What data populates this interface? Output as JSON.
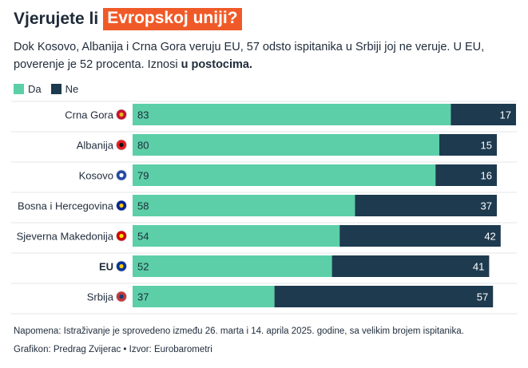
{
  "header": {
    "title_prefix": "Vjerujete li",
    "title_highlight": "Evropskoj uniji?",
    "subtitle_main": "Dok Kosovo, Albanija i Crna Gora veruju EU, 57 odsto ispitanika u Srbiji joj ne veruje. U EU, poverenje je 52 procenta. Iznosi ",
    "subtitle_bold": "u postocima."
  },
  "footer": {
    "note": "Napomena: Istraživanje je sprovedeno između 26. marta i 14. aprila 2025. godine, sa velikim brojem ispitanika.",
    "credit": "Grafikon: Predrag Zvijerac • Izvor: Eurobarometri"
  },
  "colors": {
    "da": "#5ccfa8",
    "ne": "#1d3a4f",
    "accent": "#f05a28"
  },
  "chart_data": {
    "type": "bar",
    "orientation": "horizontal",
    "stacked": true,
    "categories": [
      "Crna Gora",
      "Albanija",
      "Kosovo",
      "Bosna i Hercegovina",
      "Sjeverna Makedonija",
      "EU",
      "Srbija"
    ],
    "category_icons": [
      "montenegro-flag-icon",
      "albania-flag-icon",
      "kosovo-flag-icon",
      "bosnia-flag-icon",
      "north-macedonia-flag-icon",
      "eu-flag-icon",
      "serbia-flag-icon"
    ],
    "bold_categories": [
      "EU"
    ],
    "series": [
      {
        "name": "Da",
        "color": "#5ccfa8",
        "values": [
          83,
          80,
          79,
          58,
          54,
          52,
          37
        ]
      },
      {
        "name": "Ne",
        "color": "#1d3a4f",
        "values": [
          17,
          15,
          16,
          37,
          42,
          41,
          57
        ]
      }
    ],
    "xlim": [
      0,
      100
    ],
    "legend": "top-left",
    "grid": false
  }
}
